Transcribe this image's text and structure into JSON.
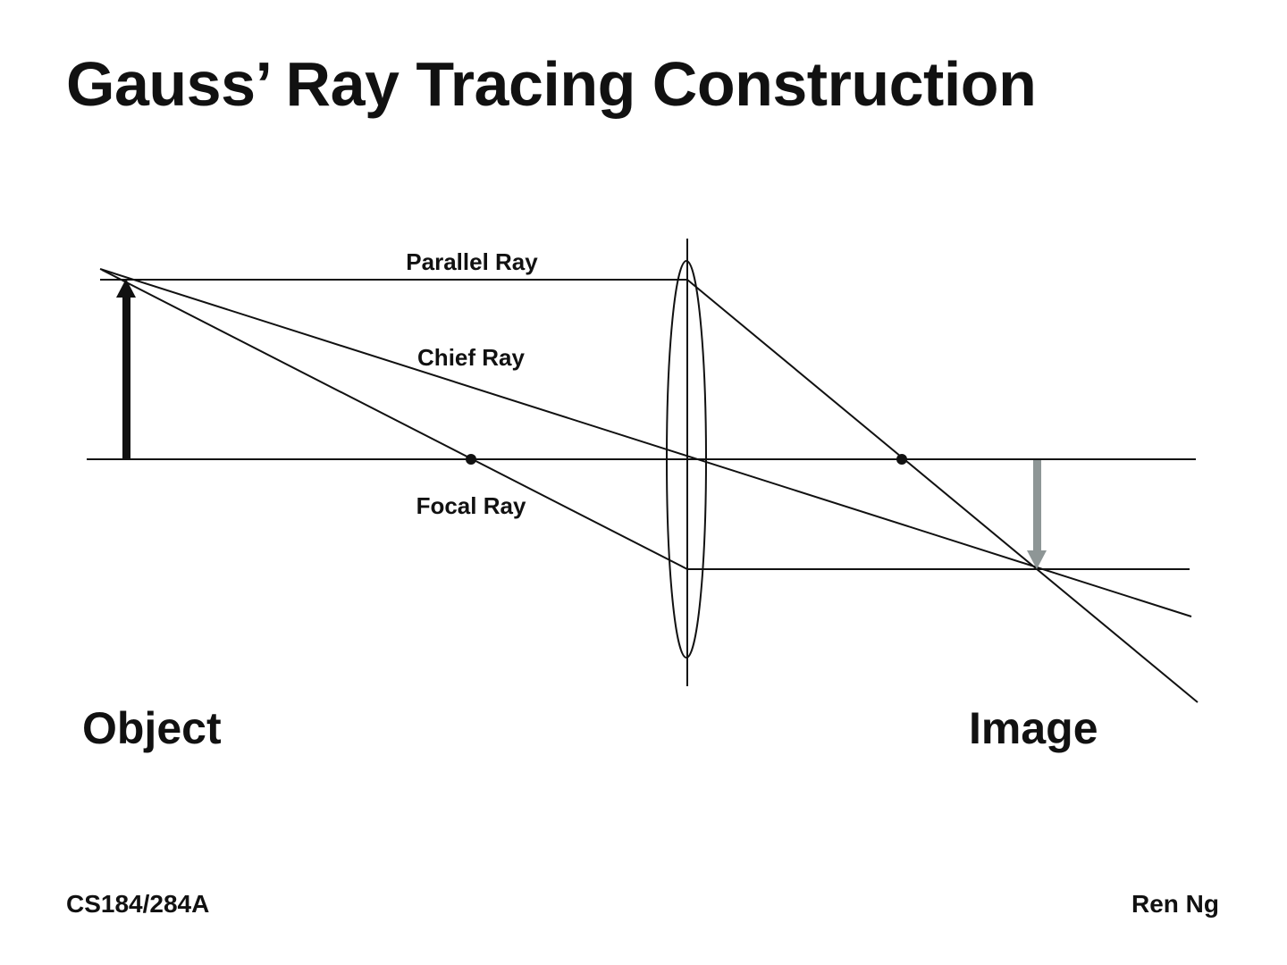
{
  "slide": {
    "title": "Gauss’ Ray Tracing Construction"
  },
  "diagram": {
    "rays": {
      "parallel_label": "Parallel Ray",
      "chief_label": "Chief Ray",
      "focal_label": "Focal Ray"
    },
    "object_label": "Object",
    "image_label": "Image",
    "colors": {
      "line": "#111111",
      "object_arrow": "#111111",
      "image_arrow": "#8e9696"
    }
  },
  "footer": {
    "course": "CS184/284A",
    "author": "Ren Ng"
  }
}
